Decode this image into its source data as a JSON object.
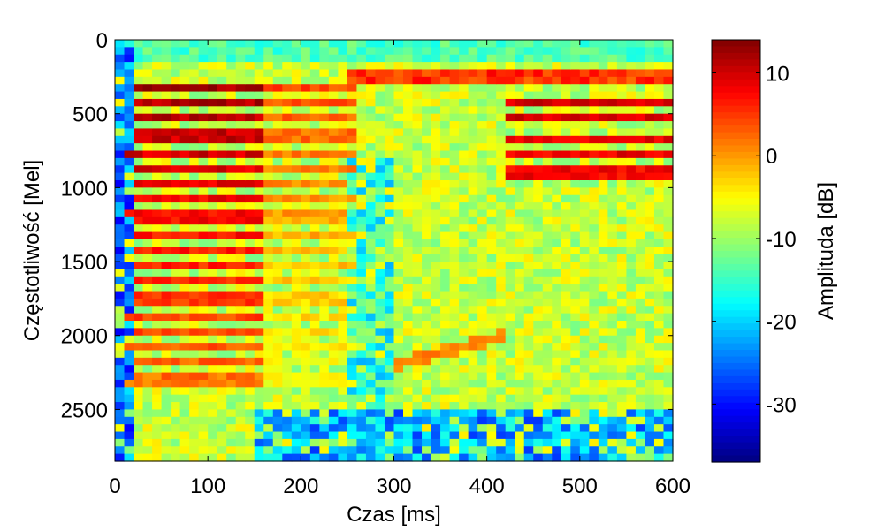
{
  "chart_data": {
    "type": "heatmap",
    "title": "",
    "xlabel": "Czas [ms]",
    "ylabel": "Częstotliwość [Mel]",
    "xlim": [
      0,
      600
    ],
    "ylim": [
      2850,
      0
    ],
    "x_ticks": [
      0,
      100,
      200,
      300,
      400,
      500,
      600
    ],
    "y_ticks": [
      0,
      500,
      1000,
      1500,
      2000,
      2500
    ],
    "y_reversed": true,
    "grid": false,
    "colormap": "jet",
    "colorbar": {
      "label": "Amplituda [dB]",
      "range": [
        -37,
        14
      ],
      "ticks": [
        10,
        0,
        -10,
        -20,
        -30
      ]
    },
    "grid_size": {
      "cols": 60,
      "rows": 57,
      "col_width_ms": 10,
      "row_height_mel": 50
    },
    "features": [
      {
        "kind": "background",
        "value_db": -8,
        "note": "mostly yellow-green noise"
      },
      {
        "kind": "low_freq_band",
        "x_range": [
          0,
          600
        ],
        "y_range": [
          0,
          150
        ],
        "value_db": -14
      },
      {
        "kind": "top_band",
        "x_range": [
          250,
          600
        ],
        "y_range": [
          180,
          310
        ],
        "value_db": 5
      },
      {
        "kind": "harmonic_stack",
        "x_range": [
          15,
          255
        ],
        "base_mel": 320,
        "spacing_mel": 110,
        "count": 19,
        "strong_until_ms": 160,
        "peak_db": 12
      },
      {
        "kind": "harmonic_stack",
        "x_range": [
          420,
          600
        ],
        "base_mel": 420,
        "spacing_mel": 120,
        "count": 5,
        "peak_db": 10
      },
      {
        "kind": "curved_band",
        "x_range": [
          300,
          420
        ],
        "y_at_start": 2200,
        "y_at_end": 2000,
        "value_db": 1
      },
      {
        "kind": "low_energy_region",
        "x_range": [
          0,
          15
        ],
        "y_range": [
          0,
          2850
        ],
        "value_db": -25
      },
      {
        "kind": "low_energy_region",
        "x_range": [
          150,
          600
        ],
        "y_range": [
          2500,
          2850
        ],
        "value_db": -22
      },
      {
        "kind": "vertical_gap",
        "x_range": [
          255,
          300
        ],
        "y_range": [
          800,
          2850
        ],
        "value_db": -16
      }
    ]
  }
}
